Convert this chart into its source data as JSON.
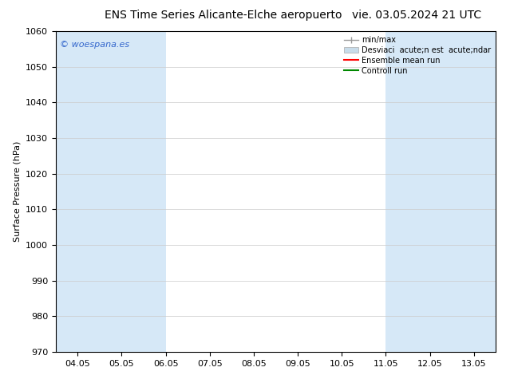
{
  "title_left": "ENS Time Series Alicante-Elche aeropuerto",
  "title_right": "vie. 03.05.2024 21 UTC",
  "ylabel": "Surface Pressure (hPa)",
  "watermark": "© woespana.es",
  "watermark_color": "#3366cc",
  "ylim": [
    970,
    1060
  ],
  "yticks": [
    970,
    980,
    990,
    1000,
    1010,
    1020,
    1030,
    1040,
    1050,
    1060
  ],
  "xtick_labels": [
    "04.05",
    "05.05",
    "06.05",
    "07.05",
    "08.05",
    "09.05",
    "10.05",
    "11.05",
    "12.05",
    "13.05"
  ],
  "band_color": "#d6e8f7",
  "background_color": "#ffffff",
  "legend_entry1": "min/max",
  "legend_entry2": "Desviaci  acute;n est  acute;ndar",
  "legend_entry3": "Ensemble mean run",
  "legend_entry4": "Controll run",
  "legend_color1": "#999999",
  "legend_color2": "#c8dcea",
  "legend_color3": "#ff0000",
  "legend_color4": "#008800",
  "title_fontsize": 10,
  "axis_label_fontsize": 8,
  "tick_fontsize": 8
}
